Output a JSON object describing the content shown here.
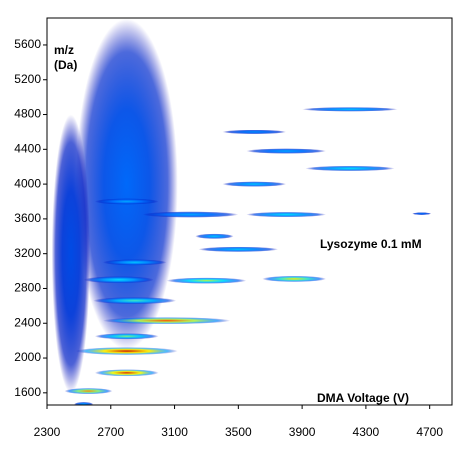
{
  "chart_data": {
    "type": "heatmap",
    "y_label_lines": [
      "m/z",
      "(Da)"
    ],
    "annotation": "Lysozyme 0.1 mM",
    "x_label": "DMA Voltage (V)",
    "xlim": [
      2300,
      4840
    ],
    "ylim": [
      1460,
      5910
    ],
    "xticks": [
      2300,
      2700,
      3100,
      3500,
      3900,
      4300,
      4700
    ],
    "yticks": [
      1600,
      2000,
      2400,
      2800,
      3200,
      3600,
      4000,
      4400,
      4800,
      5200,
      5600
    ],
    "colorscale": [
      [
        0,
        "#0000b0"
      ],
      [
        0.3,
        "#0070ff"
      ],
      [
        0.5,
        "#00e0ff"
      ],
      [
        0.7,
        "#ffff00"
      ],
      [
        0.85,
        "#ff5000"
      ],
      [
        1,
        "#b00000"
      ]
    ],
    "features": {
      "x": [
        2800,
        2450,
        2530,
        2560,
        2800,
        2800,
        2800,
        3050,
        2850,
        2750,
        3300,
        3850,
        2850,
        3500,
        3350,
        3200,
        3800,
        2800,
        3600,
        4200,
        3800,
        3600,
        4200,
        4650
      ],
      "y": [
        4000,
        3200,
        1470,
        1620,
        1830,
        2080,
        2250,
        2430,
        2660,
        2900,
        2890,
        2910,
        3100,
        3250,
        3400,
        3650,
        3650,
        3800,
        4000,
        4180,
        4380,
        4600,
        4860,
        3660
      ],
      "x_spread": [
        320,
        120,
        60,
        150,
        200,
        320,
        200,
        400,
        260,
        220,
        250,
        200,
        200,
        250,
        120,
        300,
        250,
        200,
        200,
        280,
        250,
        200,
        300,
        60
      ],
      "y_spread": [
        1900,
        1600,
        25,
        35,
        40,
        45,
        35,
        40,
        40,
        40,
        35,
        35,
        35,
        30,
        30,
        35,
        30,
        35,
        30,
        30,
        30,
        25,
        25,
        15
      ],
      "intensity": [
        0.28,
        0.2,
        0.4,
        0.8,
        0.92,
        0.95,
        0.6,
        0.85,
        0.55,
        0.5,
        0.65,
        0.72,
        0.45,
        0.45,
        0.45,
        0.4,
        0.5,
        0.4,
        0.45,
        0.5,
        0.4,
        0.35,
        0.45,
        0.3
      ]
    }
  }
}
